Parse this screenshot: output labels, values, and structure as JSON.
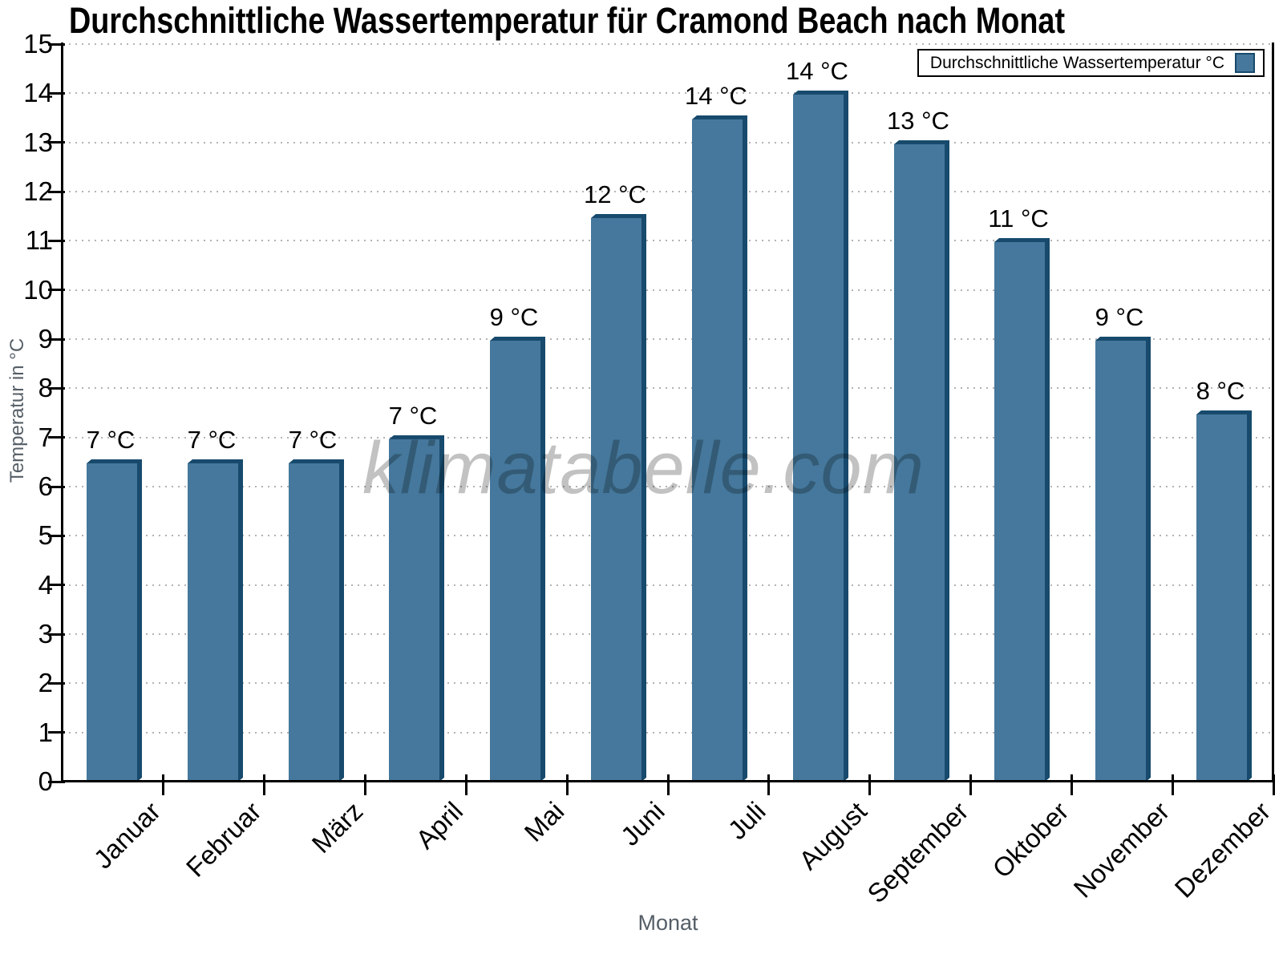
{
  "chart_data": {
    "type": "bar",
    "title": "Durchschnittliche Wassertemperatur für Cramond Beach nach Monat",
    "xlabel": "Monat",
    "ylabel": "Temperatur in °C",
    "categories": [
      "Januar",
      "Februar",
      "März",
      "April",
      "Mai",
      "Juni",
      "Juli",
      "August",
      "September",
      "Oktober",
      "November",
      "Dezember"
    ],
    "values": [
      6.55,
      6.55,
      6.55,
      7.05,
      9.05,
      11.55,
      13.55,
      14.05,
      13.05,
      11.05,
      9.05,
      7.55
    ],
    "value_labels": [
      "7 °C",
      "7 °C",
      "7 °C",
      "7 °C",
      "9 °C",
      "12 °C",
      "14 °C",
      "14 °C",
      "13 °C",
      "11 °C",
      "9 °C",
      "8 °C"
    ],
    "ylim": [
      0,
      15
    ],
    "yticks": [
      0,
      1,
      2,
      3,
      4,
      5,
      6,
      7,
      8,
      9,
      10,
      11,
      12,
      13,
      14,
      15
    ],
    "grid": "horizontal-dotted",
    "legend": {
      "label": "Durchschnittliche Wassertemperatur °C",
      "position": "top-right"
    },
    "watermark": "klimatabelle.com",
    "colors": {
      "bar_face": "#45789c",
      "bar_side": "#174a6c",
      "grid": "#b3b3b3",
      "axis": "#000000",
      "axis_title": "#555e66",
      "watermark": "rgba(0,0,0,0.24)"
    }
  }
}
